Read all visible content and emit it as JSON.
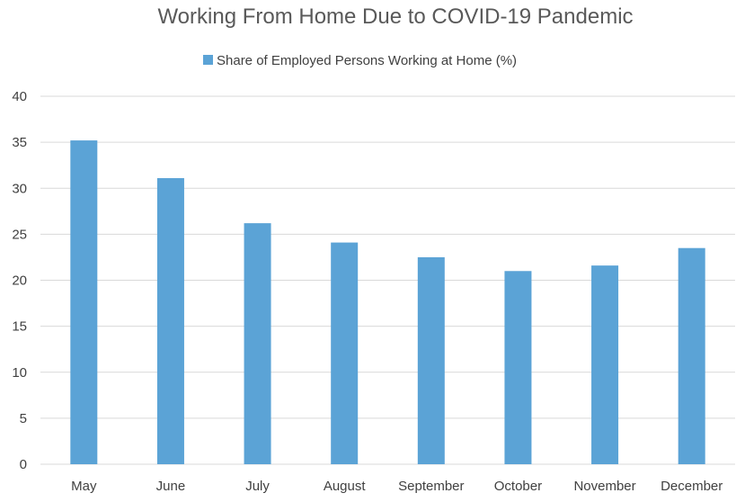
{
  "chart_data": {
    "type": "bar",
    "title": "Working From Home Due to COVID-19 Pandemic",
    "categories": [
      "May",
      "June",
      "July",
      "August",
      "September",
      "October",
      "November",
      "December"
    ],
    "series": [
      {
        "name": "Share of Employed Persons Working at Home (%)",
        "values": [
          35.2,
          31.1,
          26.2,
          24.1,
          22.5,
          21.0,
          21.6,
          23.5
        ],
        "color": "#5ba3d6"
      }
    ],
    "xlabel": "",
    "ylabel": "",
    "ylim": [
      0,
      40
    ],
    "yticks": [
      "0",
      "5",
      "10",
      "15",
      "20",
      "25",
      "30",
      "35",
      "40"
    ],
    "grid": true,
    "legend_position": "top-center"
  }
}
